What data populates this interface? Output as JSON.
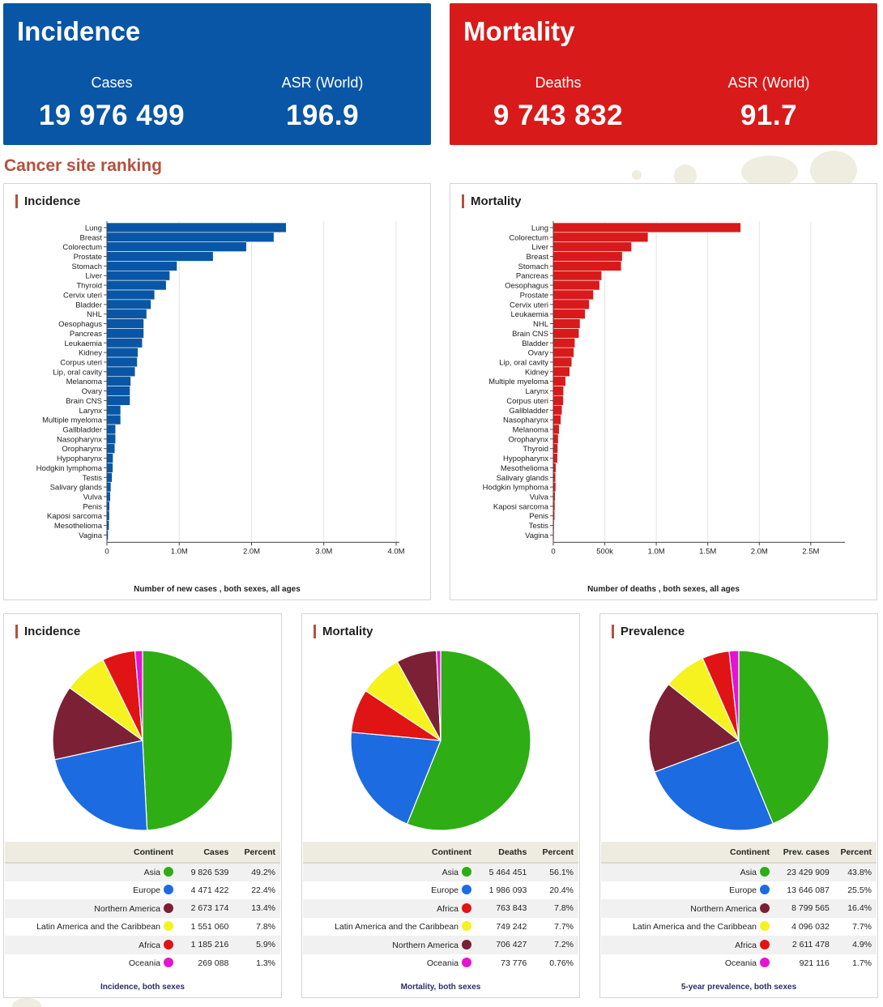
{
  "summary": {
    "incidence": {
      "title": "Incidence",
      "label1": "Cases",
      "value1": "19 976 499",
      "label2": "ASR (World)",
      "value2": "196.9",
      "color": "#0956a6"
    },
    "mortality": {
      "title": "Mortality",
      "label1": "Deaths",
      "value1": "9 743 832",
      "label2": "ASR (World)",
      "value2": "91.7",
      "color": "#d91a1a"
    }
  },
  "section_title": "Cancer site ranking",
  "colors": {
    "asia": "#2ead14",
    "europe": "#1d6be0",
    "northern_america": "#7b2035",
    "latin_america": "#f5f21f",
    "africa": "#e01414",
    "oceania": "#e414d2"
  },
  "chart_data": [
    {
      "type": "bar",
      "orientation": "horizontal",
      "title": "Incidence",
      "color": "#0956a6",
      "categories": [
        "Lung",
        "Breast",
        "Colorectum",
        "Prostate",
        "Stomach",
        "Liver",
        "Thyroid",
        "Cervix uteri",
        "Bladder",
        "NHL",
        "Oesophagus",
        "Pancreas",
        "Leukaemia",
        "Kidney",
        "Corpus uteri",
        "Lip, oral cavity",
        "Melanoma",
        "Ovary",
        "Brain CNS",
        "Larynx",
        "Multiple myeloma",
        "Gallbladder",
        "Nasopharynx",
        "Oropharynx",
        "Hypopharynx",
        "Hodgkin lymphoma",
        "Testis",
        "Salivary glands",
        "Vulva",
        "Penis",
        "Kaposi sarcoma",
        "Mesothelioma",
        "Vagina"
      ],
      "values": [
        2480000,
        2310000,
        1930000,
        1470000,
        970000,
        870000,
        820000,
        660000,
        610000,
        550000,
        510000,
        510000,
        490000,
        430000,
        420000,
        390000,
        330000,
        320000,
        320000,
        190000,
        190000,
        120000,
        120000,
        110000,
        85000,
        83000,
        72000,
        56000,
        48000,
        37000,
        35000,
        31000,
        18000
      ],
      "xlim": [
        0,
        4000000
      ],
      "xticks": [
        0,
        1000000,
        2000000,
        3000000,
        4000000
      ],
      "xtick_labels": [
        "0",
        "1.0M",
        "2.0M",
        "3.0M",
        "4.0M"
      ],
      "xlabel": "Number of new cases , both sexes, all ages"
    },
    {
      "type": "bar",
      "orientation": "horizontal",
      "title": "Mortality",
      "color": "#d91a1a",
      "categories": [
        "Lung",
        "Colorectum",
        "Liver",
        "Breast",
        "Stomach",
        "Pancreas",
        "Oesophagus",
        "Prostate",
        "Cervix uteri",
        "Leukaemia",
        "NHL",
        "Brain CNS",
        "Bladder",
        "Ovary",
        "Lip, oral cavity",
        "Kidney",
        "Multiple myeloma",
        "Larynx",
        "Corpus uteri",
        "Gallbladder",
        "Nasopharynx",
        "Melanoma",
        "Oropharynx",
        "Thyroid",
        "Hypopharynx",
        "Mesothelioma",
        "Salivary glands",
        "Hodgkin lymphoma",
        "Vulva",
        "Kaposi sarcoma",
        "Penis",
        "Testis",
        "Vagina"
      ],
      "values": [
        1820000,
        920000,
        760000,
        670000,
        660000,
        470000,
        450000,
        390000,
        350000,
        310000,
        260000,
        250000,
        210000,
        200000,
        180000,
        160000,
        120000,
        100000,
        98000,
        85000,
        74000,
        58000,
        48000,
        44000,
        41000,
        26000,
        23000,
        24000,
        18000,
        16000,
        14000,
        9000,
        8000
      ],
      "xlim": [
        0,
        2800000
      ],
      "xticks": [
        0,
        500000,
        1000000,
        1500000,
        2000000,
        2500000
      ],
      "xtick_labels": [
        "0",
        "500k",
        "1.0M",
        "1.5M",
        "2.0M",
        "2.5M"
      ],
      "xlabel": "Number of deaths , both sexes, all ages"
    },
    {
      "type": "pie",
      "title": "Incidence",
      "measure": "Cases",
      "caption": "Incidence, both sexes",
      "slices": [
        {
          "key": "asia",
          "name": "Asia",
          "value": 9826539,
          "value_text": "9 826 539",
          "percent": "49.2%"
        },
        {
          "key": "europe",
          "name": "Europe",
          "value": 4471422,
          "value_text": "4 471 422",
          "percent": "22.4%"
        },
        {
          "key": "northern_america",
          "name": "Northern America",
          "value": 2673174,
          "value_text": "2 673 174",
          "percent": "13.4%"
        },
        {
          "key": "latin_america",
          "name": "Latin America and the Caribbean",
          "value": 1551060,
          "value_text": "1 551 060",
          "percent": "7.8%"
        },
        {
          "key": "africa",
          "name": "Africa",
          "value": 1185216,
          "value_text": "1 185 216",
          "percent": "5.9%"
        },
        {
          "key": "oceania",
          "name": "Oceania",
          "value": 269088,
          "value_text": "269 088",
          "percent": "1.3%"
        }
      ]
    },
    {
      "type": "pie",
      "title": "Mortality",
      "measure": "Deaths",
      "caption": "Mortality, both sexes",
      "slices": [
        {
          "key": "asia",
          "name": "Asia",
          "value": 5464451,
          "value_text": "5 464 451",
          "percent": "56.1%"
        },
        {
          "key": "europe",
          "name": "Europe",
          "value": 1986093,
          "value_text": "1 986 093",
          "percent": "20.4%"
        },
        {
          "key": "africa",
          "name": "Africa",
          "value": 763843,
          "value_text": "763 843",
          "percent": "7.8%"
        },
        {
          "key": "latin_america",
          "name": "Latin America and the Caribbean",
          "value": 749242,
          "value_text": "749 242",
          "percent": "7.7%"
        },
        {
          "key": "northern_america",
          "name": "Northern America",
          "value": 706427,
          "value_text": "706 427",
          "percent": "7.2%"
        },
        {
          "key": "oceania",
          "name": "Oceania",
          "value": 73776,
          "value_text": "73 776",
          "percent": "0.76%"
        }
      ]
    },
    {
      "type": "pie",
      "title": "Prevalence",
      "measure": "Prev. cases",
      "caption": "5-year prevalence, both sexes",
      "slices": [
        {
          "key": "asia",
          "name": "Asia",
          "value": 23429909,
          "value_text": "23 429 909",
          "percent": "43.8%"
        },
        {
          "key": "europe",
          "name": "Europe",
          "value": 13646087,
          "value_text": "13 646 087",
          "percent": "25.5%"
        },
        {
          "key": "northern_america",
          "name": "Northern America",
          "value": 8799565,
          "value_text": "8 799 565",
          "percent": "16.4%"
        },
        {
          "key": "latin_america",
          "name": "Latin America and the Caribbean",
          "value": 4096032,
          "value_text": "4 096 032",
          "percent": "7.7%"
        },
        {
          "key": "africa",
          "name": "Africa",
          "value": 2611478,
          "value_text": "2 611 478",
          "percent": "4.9%"
        },
        {
          "key": "oceania",
          "name": "Oceania",
          "value": 921116,
          "value_text": "921 116",
          "percent": "1.7%"
        }
      ]
    }
  ],
  "table_header": {
    "continent": "Continent",
    "percent": "Percent"
  }
}
